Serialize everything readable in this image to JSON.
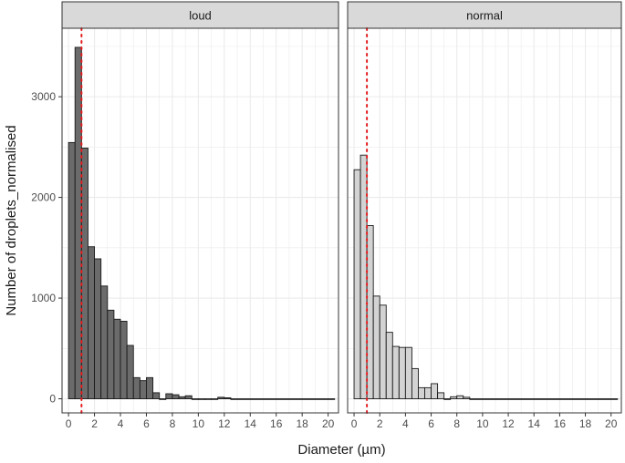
{
  "chart_data": {
    "type": "bar",
    "subtype": "faceted-histogram",
    "xlabel": "Diameter (µm)",
    "ylabel": "Number of droplets_normalised",
    "xlim": [
      -0.5,
      20.8
    ],
    "ylim": [
      -140,
      3680
    ],
    "x_ticks": [
      0,
      2,
      4,
      6,
      8,
      10,
      12,
      14,
      16,
      18,
      20
    ],
    "y_ticks": [
      0,
      1000,
      2000,
      3000
    ],
    "bin_width": 0.5,
    "reference_line": {
      "x": 1.0,
      "color": "#e31a1c",
      "style": "dotted"
    },
    "grid": true,
    "panels": [
      {
        "label": "loud",
        "fill": "#6b6b6b",
        "bins": [
          {
            "x0": 0.0,
            "x1": 0.5,
            "y": 2545
          },
          {
            "x0": 0.5,
            "x1": 1.0,
            "y": 3490
          },
          {
            "x0": 1.0,
            "x1": 1.5,
            "y": 2490
          },
          {
            "x0": 1.5,
            "x1": 2.0,
            "y": 1510
          },
          {
            "x0": 2.0,
            "x1": 2.5,
            "y": 1390
          },
          {
            "x0": 2.5,
            "x1": 3.0,
            "y": 1120
          },
          {
            "x0": 3.0,
            "x1": 3.5,
            "y": 880
          },
          {
            "x0": 3.5,
            "x1": 4.0,
            "y": 790
          },
          {
            "x0": 4.0,
            "x1": 4.5,
            "y": 770
          },
          {
            "x0": 4.5,
            "x1": 5.0,
            "y": 530
          },
          {
            "x0": 5.0,
            "x1": 5.5,
            "y": 210
          },
          {
            "x0": 5.5,
            "x1": 6.0,
            "y": 180
          },
          {
            "x0": 6.0,
            "x1": 6.5,
            "y": 210
          },
          {
            "x0": 6.5,
            "x1": 7.0,
            "y": 60
          },
          {
            "x0": 7.0,
            "x1": 7.5,
            "y": 0
          },
          {
            "x0": 7.5,
            "x1": 8.0,
            "y": 50
          },
          {
            "x0": 8.0,
            "x1": 8.5,
            "y": 40
          },
          {
            "x0": 8.5,
            "x1": 9.0,
            "y": 20
          },
          {
            "x0": 9.0,
            "x1": 9.5,
            "y": 30
          },
          {
            "x0": 9.5,
            "x1": 10.0,
            "y": 0
          },
          {
            "x0": 10.0,
            "x1": 10.5,
            "y": 0
          },
          {
            "x0": 10.5,
            "x1": 11.0,
            "y": 0
          },
          {
            "x0": 11.0,
            "x1": 11.5,
            "y": 0
          },
          {
            "x0": 11.5,
            "x1": 12.0,
            "y": 15
          },
          {
            "x0": 12.0,
            "x1": 12.5,
            "y": 10
          },
          {
            "x0": 12.5,
            "x1": 20.5,
            "y": 0
          }
        ]
      },
      {
        "label": "normal",
        "fill": "#d3d3d3",
        "bins": [
          {
            "x0": 0.0,
            "x1": 0.5,
            "y": 2275
          },
          {
            "x0": 0.5,
            "x1": 1.0,
            "y": 2420
          },
          {
            "x0": 1.0,
            "x1": 1.5,
            "y": 1720
          },
          {
            "x0": 1.5,
            "x1": 2.0,
            "y": 1020
          },
          {
            "x0": 2.0,
            "x1": 2.5,
            "y": 930
          },
          {
            "x0": 2.5,
            "x1": 3.0,
            "y": 660
          },
          {
            "x0": 3.0,
            "x1": 3.5,
            "y": 520
          },
          {
            "x0": 3.5,
            "x1": 4.0,
            "y": 510
          },
          {
            "x0": 4.0,
            "x1": 4.5,
            "y": 510
          },
          {
            "x0": 4.5,
            "x1": 5.0,
            "y": 300
          },
          {
            "x0": 5.0,
            "x1": 5.5,
            "y": 110
          },
          {
            "x0": 5.5,
            "x1": 6.0,
            "y": 110
          },
          {
            "x0": 6.0,
            "x1": 6.5,
            "y": 150
          },
          {
            "x0": 6.5,
            "x1": 7.0,
            "y": 60
          },
          {
            "x0": 7.0,
            "x1": 7.5,
            "y": 0
          },
          {
            "x0": 7.5,
            "x1": 8.0,
            "y": 20
          },
          {
            "x0": 8.0,
            "x1": 8.5,
            "y": 30
          },
          {
            "x0": 8.5,
            "x1": 9.0,
            "y": 15
          },
          {
            "x0": 9.0,
            "x1": 20.5,
            "y": 0
          }
        ]
      }
    ]
  },
  "colors": {
    "strip_bg": "#d9d9d9",
    "panel_border": "#333333",
    "grid": "#ebebeb",
    "axis_text": "#4d4d4d",
    "title_text": "#1a1a1a",
    "bar_stroke": "#1a1a1a"
  }
}
